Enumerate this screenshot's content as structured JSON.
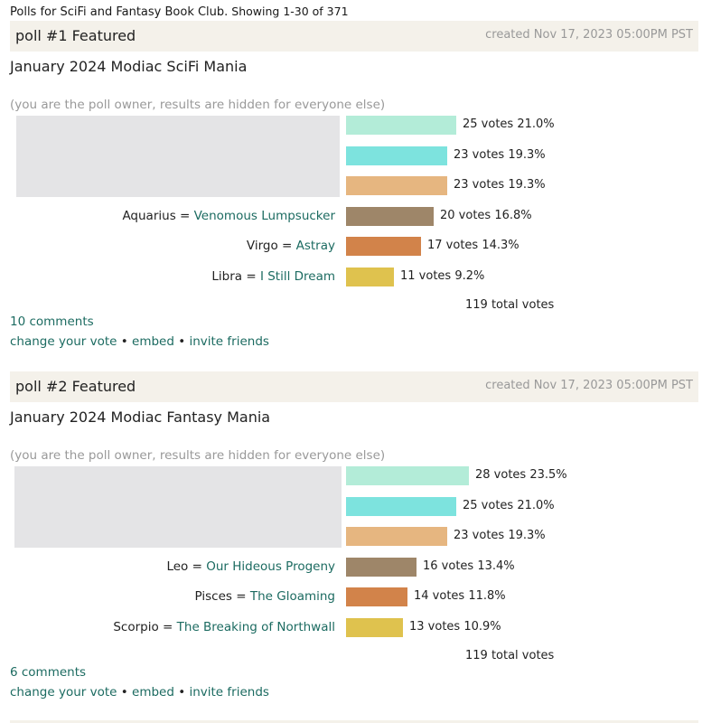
{
  "header": {
    "lead": "Polls for SciFi and Fantasy Book Club.",
    "showing": "Showing 1-30 of 371"
  },
  "colors": {
    "bar1": "#b3ecd8",
    "bar2": "#7de3de",
    "bar3": "#e6b680",
    "bar4": "#9e8669",
    "bar5": "#d2834a",
    "bar6": "#dfc24e",
    "link": "#1c6b61"
  },
  "polls": [
    {
      "label": "poll #1 Featured",
      "created": "created Nov 17, 2023 05:00PM PST",
      "title": "January 2024 Modiac SciFi Mania",
      "owner_note": "(you are the poll owner, results are hidden for everyone else)",
      "answers": [
        {
          "prefix": "",
          "book": "",
          "stat": "25 votes 21.0%",
          "votes": 25,
          "percent": 21.0
        },
        {
          "prefix": "",
          "book": "",
          "stat": "23 votes 19.3%",
          "votes": 23,
          "percent": 19.3
        },
        {
          "prefix": "",
          "book": "",
          "stat": "23 votes 19.3%",
          "votes": 23,
          "percent": 19.3
        },
        {
          "prefix": "Aquarius = ",
          "book": "Venomous Lumpsucker",
          "stat": "20 votes 16.8%",
          "votes": 20,
          "percent": 16.8
        },
        {
          "prefix": "Virgo = ",
          "book": "Astray",
          "stat": "17 votes 14.3%",
          "votes": 17,
          "percent": 14.3
        },
        {
          "prefix": "Libra = ",
          "book": "I Still Dream",
          "stat": "11 votes 9.2%",
          "votes": 11,
          "percent": 9.2
        }
      ],
      "total": "119 total votes",
      "comments": "10 comments",
      "actions": {
        "change_vote": "change your vote",
        "sep": " • ",
        "embed": "embed",
        "invite": "invite friends"
      }
    },
    {
      "label": "poll #2 Featured",
      "created": "created Nov 17, 2023 05:00PM PST",
      "title": "January 2024 Modiac Fantasy Mania",
      "owner_note": "(you are the poll owner, results are hidden for everyone else)",
      "answers": [
        {
          "prefix": "",
          "book": "",
          "stat": "28 votes 23.5%",
          "votes": 28,
          "percent": 23.5
        },
        {
          "prefix": "",
          "book": "",
          "stat": "25 votes 21.0%",
          "votes": 25,
          "percent": 21.0
        },
        {
          "prefix": "",
          "book": "",
          "stat": "23 votes 19.3%",
          "votes": 23,
          "percent": 19.3
        },
        {
          "prefix": "Leo = ",
          "book": "Our Hideous Progeny",
          "stat": "16 votes 13.4%",
          "votes": 16,
          "percent": 13.4
        },
        {
          "prefix": "Pisces = ",
          "book": "The Gloaming",
          "stat": "14 votes 11.8%",
          "votes": 14,
          "percent": 11.8
        },
        {
          "prefix": "Scorpio = ",
          "book": "The Breaking of Northwall",
          "stat": "13 votes 10.9%",
          "votes": 13,
          "percent": 10.9
        }
      ],
      "total": "119 total votes",
      "comments": "6 comments",
      "actions": {
        "change_vote": "change your vote",
        "sep": " • ",
        "embed": "embed",
        "invite": "invite friends"
      }
    }
  ]
}
